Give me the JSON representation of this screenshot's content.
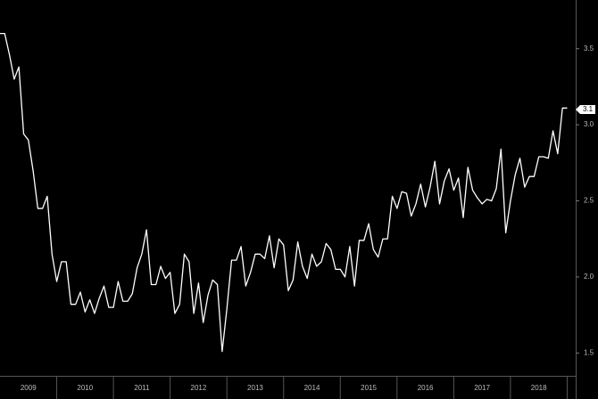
{
  "chart_data": {
    "type": "line",
    "x": [
      2009,
      2009.083,
      2009.167,
      2009.25,
      2009.333,
      2009.417,
      2009.5,
      2009.583,
      2009.667,
      2009.75,
      2009.833,
      2009.917,
      2010,
      2010.083,
      2010.167,
      2010.25,
      2010.333,
      2010.417,
      2010.5,
      2010.583,
      2010.667,
      2010.75,
      2010.833,
      2010.917,
      2011,
      2011.083,
      2011.167,
      2011.25,
      2011.333,
      2011.417,
      2011.5,
      2011.583,
      2011.667,
      2011.75,
      2011.833,
      2011.917,
      2012,
      2012.083,
      2012.167,
      2012.25,
      2012.333,
      2012.417,
      2012.5,
      2012.583,
      2012.667,
      2012.75,
      2012.833,
      2012.917,
      2013,
      2013.083,
      2013.167,
      2013.25,
      2013.333,
      2013.417,
      2013.5,
      2013.583,
      2013.667,
      2013.75,
      2013.833,
      2013.917,
      2014,
      2014.083,
      2014.167,
      2014.25,
      2014.333,
      2014.417,
      2014.5,
      2014.583,
      2014.667,
      2014.75,
      2014.833,
      2014.917,
      2015,
      2015.083,
      2015.167,
      2015.25,
      2015.333,
      2015.417,
      2015.5,
      2015.583,
      2015.667,
      2015.75,
      2015.833,
      2015.917,
      2016,
      2016.083,
      2016.167,
      2016.25,
      2016.333,
      2016.417,
      2016.5,
      2016.583,
      2016.667,
      2016.75,
      2016.833,
      2016.917,
      2017,
      2017.083,
      2017.167,
      2017.25,
      2017.333,
      2017.417,
      2017.5,
      2017.583,
      2017.667,
      2017.75,
      2017.833,
      2017.917,
      2018,
      2018.083,
      2018.167,
      2018.25,
      2018.333,
      2018.417,
      2018.5,
      2018.583,
      2018.667,
      2018.75,
      2018.833,
      2018.917,
      2019
    ],
    "series": [
      {
        "color": "#ffffff",
        "values": [
          3.6,
          3.6,
          3.46,
          3.3,
          3.38,
          2.94,
          2.9,
          2.7,
          2.45,
          2.45,
          2.53,
          2.15,
          1.97,
          2.1,
          2.1,
          1.82,
          1.82,
          1.9,
          1.77,
          1.85,
          1.76,
          1.86,
          1.94,
          1.8,
          1.8,
          1.97,
          1.84,
          1.84,
          1.89,
          2.06,
          2.15,
          2.31,
          1.95,
          1.95,
          2.07,
          1.99,
          2.03,
          1.76,
          1.82,
          2.15,
          2.1,
          1.76,
          1.96,
          1.7,
          1.88,
          1.98,
          1.95,
          1.51,
          1.79,
          2.11,
          2.11,
          2.2,
          1.94,
          2.03,
          2.15,
          2.15,
          2.12,
          2.27,
          2.06,
          2.25,
          2.21,
          1.91,
          1.98,
          2.23,
          2.07,
          1.99,
          2.15,
          2.07,
          2.1,
          2.22,
          2.18,
          2.05,
          2.05,
          2.0,
          2.2,
          1.94,
          2.24,
          2.24,
          2.35,
          2.18,
          2.13,
          2.25,
          2.25,
          2.53,
          2.45,
          2.56,
          2.55,
          2.4,
          2.48,
          2.61,
          2.46,
          2.59,
          2.76,
          2.48,
          2.63,
          2.71,
          2.57,
          2.65,
          2.39,
          2.72,
          2.57,
          2.52,
          2.48,
          2.51,
          2.5,
          2.58,
          2.84,
          2.29,
          2.5,
          2.67,
          2.78,
          2.59,
          2.66,
          2.66,
          2.79,
          2.79,
          2.78,
          2.96,
          2.81,
          3.11,
          3.11
        ]
      }
    ],
    "last_label": 3.1,
    "xlim": [
      2009,
      2019.15
    ],
    "xticks": [
      {
        "value": 2009.5,
        "label": "2009"
      },
      {
        "value": 2010.5,
        "label": "2010"
      },
      {
        "value": 2011.5,
        "label": "2011"
      },
      {
        "value": 2012.5,
        "label": "2012"
      },
      {
        "value": 2013.5,
        "label": "2013"
      },
      {
        "value": 2014.5,
        "label": "2014"
      },
      {
        "value": 2015.5,
        "label": "2015"
      },
      {
        "value": 2016.5,
        "label": "2016"
      },
      {
        "value": 2017.5,
        "label": "2017"
      },
      {
        "value": 2018.5,
        "label": "2018"
      }
    ],
    "ylim": [
      1.35,
      3.82
    ],
    "yticks": [
      1.5,
      {
        "value": 2,
        "label": "2.0"
      },
      2.5,
      {
        "value": 3,
        "label": "3.0"
      },
      3.5
    ]
  }
}
